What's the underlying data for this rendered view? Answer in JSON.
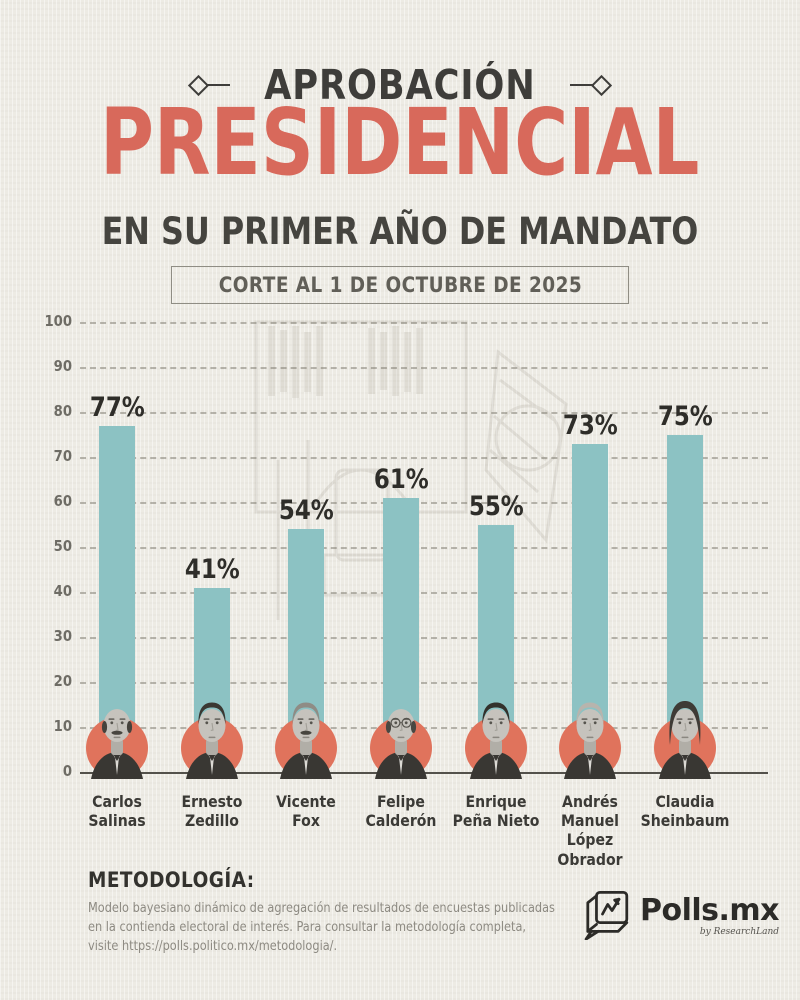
{
  "header": {
    "kicker": "APROBACIÓN",
    "title": "PRESIDENCIAL",
    "subtitle": "EN SU PRIMER AÑO DE MANDATO",
    "badge": "CORTE AL 1 DE OCTUBRE DE 2025"
  },
  "chart_data": {
    "type": "bar",
    "title": "Aprobación presidencial en su primer año de mandato",
    "subtitle_note": "Corte al 1 de octubre de 2025",
    "categories": [
      "Carlos Salinas",
      "Ernesto Zedillo",
      "Vicente Fox",
      "Felipe Calderón",
      "Enrique Peña Nieto",
      "Andrés Manuel López Obrador",
      "Claudia Sheinbaum"
    ],
    "name_lines": [
      [
        "Carlos",
        "Salinas"
      ],
      [
        "Ernesto",
        "Zedillo"
      ],
      [
        "Vicente",
        "Fox"
      ],
      [
        "Felipe",
        "Calderón"
      ],
      [
        "Enrique",
        "Peña Nieto"
      ],
      [
        "Andrés",
        "Manuel",
        "López Obrador"
      ],
      [
        "Claudia",
        "Sheinbaum"
      ]
    ],
    "values": [
      77,
      41,
      54,
      61,
      55,
      73,
      75
    ],
    "value_labels": [
      "77%",
      "41%",
      "54%",
      "61%",
      "55%",
      "73%",
      "75%"
    ],
    "ylabel": "",
    "xlabel": "",
    "ylim": [
      0,
      100
    ],
    "y_ticks": [
      0,
      10,
      20,
      30,
      40,
      50,
      60,
      70,
      80,
      90,
      100
    ],
    "grid": "horizontal-dashed",
    "legend": "none",
    "bar_color": "#8cc2c3",
    "portrait_circle_color": "#e0735c",
    "portraits": [
      {
        "hair": "bald",
        "hairColor": "#45423c",
        "mustache": true,
        "glasses": false
      },
      {
        "hair": "short",
        "hairColor": "#3a3833",
        "mustache": false,
        "glasses": false
      },
      {
        "hair": "short",
        "hairColor": "#8f8c85",
        "mustache": true,
        "glasses": false
      },
      {
        "hair": "bald",
        "hairColor": "#4a4741",
        "mustache": false,
        "glasses": true
      },
      {
        "hair": "short",
        "hairColor": "#33312c",
        "mustache": false,
        "glasses": false
      },
      {
        "hair": "short",
        "hairColor": "#b7b4ad",
        "mustache": false,
        "glasses": false
      },
      {
        "hair": "female",
        "hairColor": "#3e3b36",
        "mustache": false,
        "glasses": false
      }
    ]
  },
  "methodology": {
    "heading": "METODOLOGÍA:",
    "body": "Modelo bayesiano dinámico de agregación de resultados de encuestas publicadas en la contienda electoral de interés. Para consultar la metodología completa, visite https://polls.politico.mx/metodologia/."
  },
  "logo": {
    "name": "Polls.mx",
    "tagline": "by ResearchLand"
  },
  "colors": {
    "background": "#edebe4",
    "title_accent": "#d8695b",
    "heading_dark": "#3e3d3a",
    "bar_teal": "#8cc2c3",
    "portrait_coral": "#e0735c",
    "grid": "#7a756a"
  }
}
